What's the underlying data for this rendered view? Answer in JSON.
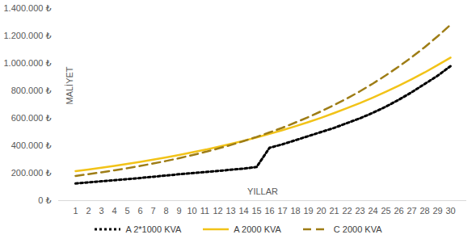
{
  "chart_data": {
    "type": "line",
    "x_label": "YILLAR",
    "y_label": "MALİYET",
    "categories": [
      "1",
      "2",
      "3",
      "4",
      "5",
      "6",
      "7",
      "8",
      "9",
      "10",
      "11",
      "12",
      "13",
      "14",
      "15",
      "16",
      "17",
      "18",
      "19",
      "20",
      "21",
      "22",
      "23",
      "24",
      "25",
      "26",
      "27",
      "28",
      "29",
      "30"
    ],
    "ylim": [
      0,
      1400000
    ],
    "yticks": [
      {
        "value": 0,
        "label": "0 ₺"
      },
      {
        "value": 200000,
        "label": "200.000 ₺"
      },
      {
        "value": 400000,
        "label": "400.000 ₺"
      },
      {
        "value": 600000,
        "label": "600.000 ₺"
      },
      {
        "value": 800000,
        "label": "800.000 ₺"
      },
      {
        "value": 1000000,
        "label": "1.000.000 ₺"
      },
      {
        "value": 1200000,
        "label": "1.200.000 ₺"
      },
      {
        "value": 1400000,
        "label": "1.400.000 ₺"
      }
    ],
    "grid": false,
    "legend": "bottom",
    "series": [
      {
        "name": "A 2*1000 KVA",
        "color": "#000000",
        "line_style": "dotted",
        "values": [
          125000,
          133000,
          141000,
          149000,
          157000,
          165000,
          174000,
          183000,
          192000,
          200000,
          208000,
          216000,
          225000,
          233000,
          245000,
          385000,
          410000,
          440000,
          470000,
          500000,
          530000,
          565000,
          600000,
          640000,
          685000,
          735000,
          790000,
          850000,
          910000,
          980000
        ]
      },
      {
        "name": "A 2000 KVA",
        "color": "#f2c318",
        "line_style": "solid",
        "values": [
          215000,
          227000,
          240000,
          253000,
          267000,
          282000,
          298000,
          315000,
          332000,
          351000,
          370000,
          391000,
          413000,
          436000,
          460000,
          486000,
          513000,
          542000,
          572000,
          604000,
          638000,
          674000,
          711000,
          751000,
          793000,
          838000,
          885000,
          934000,
          987000,
          1042000
        ]
      },
      {
        "name": "C 2000 KVA",
        "color": "#9e7d16",
        "line_style": "dashed",
        "values": [
          180000,
          193000,
          206000,
          221000,
          236000,
          253000,
          270000,
          289000,
          309000,
          331000,
          354000,
          379000,
          405000,
          434000,
          464000,
          497000,
          531000,
          569000,
          608000,
          651000,
          697000,
          745000,
          797000,
          853000,
          913000,
          977000,
          1045000,
          1118000,
          1197000,
          1281000
        ]
      }
    ]
  }
}
